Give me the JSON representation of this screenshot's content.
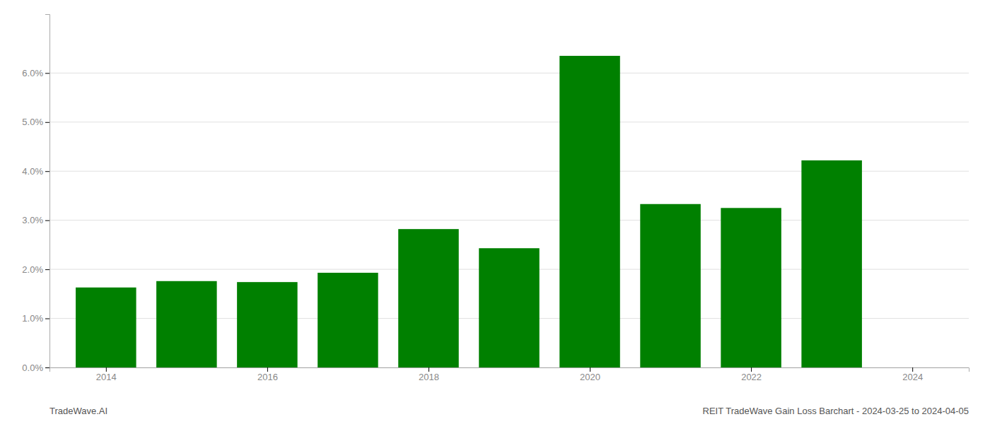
{
  "chart_data": {
    "type": "bar",
    "title": "REIT TradeWave Gain Loss Barchart - 2024-03-25 to 2024-04-05",
    "annotations": [
      "TradeWave.AI"
    ],
    "x": [
      2014,
      2015,
      2016,
      2017,
      2018,
      2019,
      2020,
      2021,
      2022,
      2023
    ],
    "values": [
      0.0163,
      0.0176,
      0.0174,
      0.0193,
      0.0282,
      0.0243,
      0.0635,
      0.0333,
      0.0325,
      0.0422
    ],
    "color": "#008000",
    "xlim": [
      2013.3,
      2024.7
    ],
    "xticks": [
      2014,
      2016,
      2018,
      2020,
      2022,
      2024
    ],
    "ylim": [
      0,
      0.072
    ],
    "yticks": [
      {
        "value": 0.0,
        "label": "0.0%"
      },
      {
        "value": 0.01,
        "label": "1.0%"
      },
      {
        "value": 0.02,
        "label": "2.0%"
      },
      {
        "value": 0.03,
        "label": "3.0%"
      },
      {
        "value": 0.04,
        "label": "4.0%"
      },
      {
        "value": 0.05,
        "label": "5.0%"
      },
      {
        "value": 0.06,
        "label": "6.0%"
      }
    ],
    "grid": true
  }
}
